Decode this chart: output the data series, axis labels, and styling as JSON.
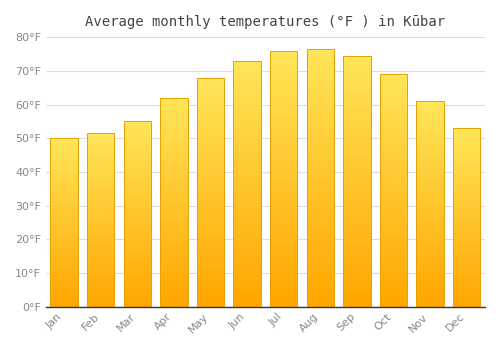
{
  "title": "Average monthly temperatures (°F ) in Kūbar",
  "months": [
    "Jan",
    "Feb",
    "Mar",
    "Apr",
    "May",
    "Jun",
    "Jul",
    "Aug",
    "Sep",
    "Oct",
    "Nov",
    "Dec"
  ],
  "values": [
    50,
    51.5,
    55,
    62,
    68,
    73,
    76,
    76.5,
    74.5,
    69,
    61,
    53
  ],
  "bar_color_light": "#FFD966",
  "bar_color_dark": "#FFA500",
  "ylim": [
    0,
    80
  ],
  "yticks": [
    0,
    10,
    20,
    30,
    40,
    50,
    60,
    70,
    80
  ],
  "ytick_labels": [
    "0°F",
    "10°F",
    "20°F",
    "30°F",
    "40°F",
    "50°F",
    "60°F",
    "70°F",
    "80°F"
  ],
  "background_color": "#ffffff",
  "grid_color": "#dddddd",
  "bar_edge_color": "#E8A000",
  "title_fontsize": 10,
  "tick_fontsize": 8,
  "tick_color": "#888888"
}
